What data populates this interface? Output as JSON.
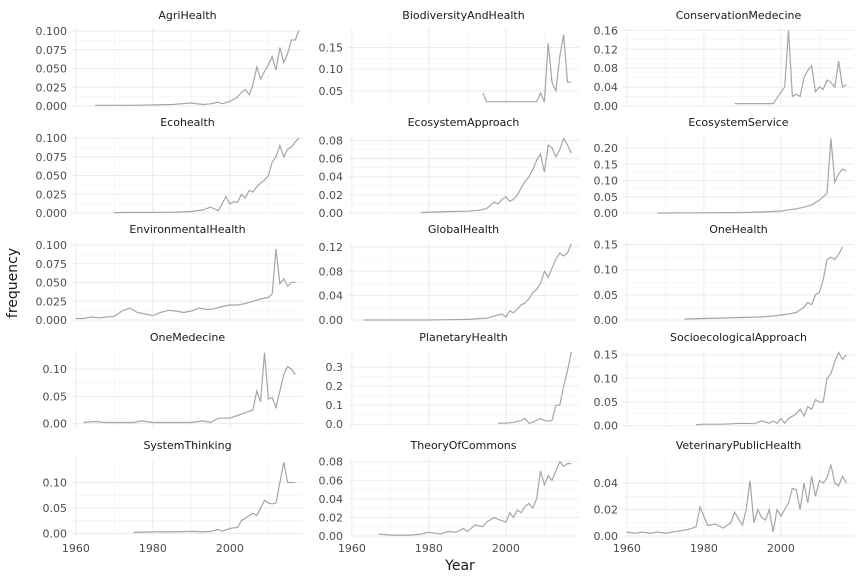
{
  "chart_data": {
    "type": "line",
    "layout": "facet-grid-3-columns-free-y",
    "xlabel": "Year",
    "ylabel": "frequency",
    "xticks": [
      1960,
      1980,
      2000
    ],
    "xlim": [
      1959,
      2019
    ],
    "grid": true,
    "line_color": "#a6a6a6",
    "panels": [
      {
        "name": "AgriHealth",
        "ylim": [
          0,
          0.104
        ],
        "yticks": [
          "0.000",
          "0.025",
          "0.050",
          "0.075",
          "0.100"
        ],
        "x": [
          1965,
          1975,
          1985,
          1990,
          1993,
          1995,
          1997,
          1998,
          2000,
          2002,
          2003,
          2004,
          2005,
          2006,
          2007,
          2008,
          2009,
          2010,
          2011,
          2012,
          2013,
          2014,
          2015,
          2016,
          2017,
          2018
        ],
        "y": [
          0.001,
          0.001,
          0.002,
          0.004,
          0.002,
          0.003,
          0.005,
          0.003,
          0.006,
          0.012,
          0.018,
          0.022,
          0.015,
          0.028,
          0.052,
          0.036,
          0.046,
          0.055,
          0.066,
          0.048,
          0.078,
          0.058,
          0.07,
          0.088,
          0.088,
          0.101
        ]
      },
      {
        "name": "BiodiversityAndHealth",
        "ylim": [
          0.015,
          0.195
        ],
        "yticks": [
          "0.05",
          "0.10",
          "0.15"
        ],
        "x": [
          1994,
          1995,
          1998,
          2000,
          2002,
          2004,
          2006,
          2008,
          2009,
          2010,
          2011,
          2012,
          2013,
          2014,
          2015,
          2016,
          2017
        ],
        "y": [
          0.045,
          0.025,
          0.025,
          0.025,
          0.025,
          0.025,
          0.025,
          0.025,
          0.045,
          0.025,
          0.16,
          0.07,
          0.05,
          0.13,
          0.18,
          0.07,
          0.07
        ]
      },
      {
        "name": "ConservationMedecine",
        "ylim": [
          0,
          0.165
        ],
        "yticks": [
          "0.00",
          "0.04",
          "0.08",
          "0.12",
          "0.16"
        ],
        "x": [
          1988,
          1992,
          1996,
          1998,
          2001,
          2002,
          2003,
          2004,
          2005,
          2006,
          2007,
          2008,
          2009,
          2010,
          2011,
          2012,
          2013,
          2014,
          2015,
          2016,
          2017
        ],
        "y": [
          0.005,
          0.005,
          0.005,
          0.005,
          0.04,
          0.16,
          0.02,
          0.025,
          0.02,
          0.06,
          0.075,
          0.085,
          0.03,
          0.04,
          0.035,
          0.055,
          0.05,
          0.04,
          0.095,
          0.04,
          0.045
        ]
      },
      {
        "name": "Ecohealth",
        "ylim": [
          0,
          0.104
        ],
        "yticks": [
          "0.000",
          "0.025",
          "0.050",
          "0.075",
          "0.100"
        ],
        "x": [
          1970,
          1975,
          1980,
          1985,
          1990,
          1993,
          1995,
          1997,
          1999,
          2000,
          2001,
          2002,
          2003,
          2004,
          2005,
          2006,
          2007,
          2008,
          2009,
          2010,
          2011,
          2012,
          2013,
          2014,
          2015,
          2016,
          2017,
          2018
        ],
        "y": [
          0.0005,
          0.0008,
          0.0008,
          0.001,
          0.002,
          0.004,
          0.008,
          0.003,
          0.022,
          0.012,
          0.015,
          0.014,
          0.025,
          0.02,
          0.03,
          0.028,
          0.035,
          0.04,
          0.044,
          0.05,
          0.068,
          0.075,
          0.09,
          0.075,
          0.085,
          0.088,
          0.095,
          0.1
        ]
      },
      {
        "name": "EcosystemApproach",
        "ylim": [
          0,
          0.086
        ],
        "yticks": [
          "0.00",
          "0.02",
          "0.04",
          "0.06",
          "0.08"
        ],
        "x": [
          1978,
          1981,
          1985,
          1990,
          1993,
          1995,
          1997,
          1998,
          1999,
          2000,
          2001,
          2002,
          2003,
          2004,
          2005,
          2006,
          2007,
          2008,
          2009,
          2010,
          2011,
          2012,
          2013,
          2014,
          2015,
          2016,
          2017
        ],
        "y": [
          0.0005,
          0.001,
          0.0015,
          0.002,
          0.003,
          0.005,
          0.012,
          0.01,
          0.015,
          0.018,
          0.013,
          0.015,
          0.02,
          0.028,
          0.035,
          0.04,
          0.048,
          0.058,
          0.065,
          0.045,
          0.075,
          0.072,
          0.062,
          0.07,
          0.082,
          0.075,
          0.066
        ]
      },
      {
        "name": "EcosystemService",
        "ylim": [
          0,
          0.24
        ],
        "yticks": [
          "0.00",
          "0.05",
          "0.10",
          "0.15",
          "0.20"
        ],
        "x": [
          1968,
          1980,
          1990,
          1995,
          2000,
          2002,
          2004,
          2006,
          2008,
          2010,
          2011,
          2012,
          2013,
          2014,
          2015,
          2016,
          2017
        ],
        "y": [
          0,
          0.0005,
          0.0015,
          0.003,
          0.006,
          0.01,
          0.013,
          0.018,
          0.025,
          0.04,
          0.05,
          0.06,
          0.23,
          0.095,
          0.12,
          0.135,
          0.13
        ]
      },
      {
        "name": "EnvironmentalHealth",
        "ylim": [
          0,
          0.104
        ],
        "yticks": [
          "0.000",
          "0.025",
          "0.050",
          "0.075",
          "0.100"
        ],
        "x": [
          1960,
          1962,
          1964,
          1966,
          1968,
          1970,
          1972,
          1974,
          1976,
          1978,
          1980,
          1982,
          1984,
          1986,
          1988,
          1990,
          1992,
          1994,
          1996,
          1998,
          2000,
          2002,
          2004,
          2006,
          2008,
          2010,
          2011,
          2012,
          2013,
          2014,
          2015,
          2016,
          2017
        ],
        "y": [
          0.002,
          0.002,
          0.004,
          0.003,
          0.004,
          0.005,
          0.012,
          0.016,
          0.01,
          0.008,
          0.006,
          0.01,
          0.013,
          0.012,
          0.01,
          0.012,
          0.016,
          0.014,
          0.015,
          0.018,
          0.02,
          0.02,
          0.022,
          0.025,
          0.028,
          0.03,
          0.035,
          0.095,
          0.048,
          0.055,
          0.045,
          0.05,
          0.05
        ]
      },
      {
        "name": "GlobalHealth",
        "ylim": [
          0,
          0.128
        ],
        "yticks": [
          "0.00",
          "0.04",
          "0.08",
          "0.12"
        ],
        "x": [
          1963,
          1970,
          1980,
          1985,
          1990,
          1995,
          1999,
          2000,
          2001,
          2002,
          2003,
          2004,
          2005,
          2006,
          2007,
          2008,
          2009,
          2010,
          2011,
          2012,
          2013,
          2014,
          2015,
          2016,
          2017
        ],
        "y": [
          0,
          0,
          0,
          0.0005,
          0.001,
          0.003,
          0.01,
          0.005,
          0.015,
          0.012,
          0.018,
          0.025,
          0.028,
          0.035,
          0.045,
          0.05,
          0.06,
          0.08,
          0.07,
          0.085,
          0.1,
          0.11,
          0.105,
          0.11,
          0.125
        ]
      },
      {
        "name": "OneHealth",
        "ylim": [
          0,
          0.155
        ],
        "yticks": [
          "0.00",
          "0.05",
          "0.10",
          "0.15"
        ],
        "x": [
          1975,
          1980,
          1985,
          1990,
          1995,
          1998,
          2000,
          2002,
          2004,
          2005,
          2006,
          2007,
          2008,
          2009,
          2010,
          2011,
          2012,
          2013,
          2014,
          2015,
          2016
        ],
        "y": [
          0.002,
          0.003,
          0.004,
          0.005,
          0.006,
          0.008,
          0.01,
          0.012,
          0.015,
          0.02,
          0.025,
          0.035,
          0.03,
          0.05,
          0.055,
          0.08,
          0.12,
          0.125,
          0.12,
          0.13,
          0.145
        ]
      },
      {
        "name": "OneMedecine",
        "ylim": [
          -0.008,
          0.135
        ],
        "yticks": [
          "0.00",
          "0.05",
          "0.10"
        ],
        "x": [
          1962,
          1965,
          1968,
          1970,
          1975,
          1977,
          1980,
          1985,
          1990,
          1993,
          1995,
          1997,
          2000,
          2002,
          2004,
          2006,
          2007,
          2008,
          2009,
          2010,
          2011,
          2012,
          2013,
          2014,
          2015,
          2016,
          2017
        ],
        "y": [
          0.002,
          0.004,
          0.002,
          0.002,
          0.002,
          0.005,
          0.002,
          0.002,
          0.002,
          0.005,
          0.002,
          0.01,
          0.01,
          0.015,
          0.02,
          0.025,
          0.06,
          0.04,
          0.13,
          0.045,
          0.048,
          0.03,
          0.06,
          0.09,
          0.105,
          0.1,
          0.09
        ]
      },
      {
        "name": "PlanetaryHealth",
        "ylim": [
          -0.02,
          0.39
        ],
        "yticks": [
          "0.0",
          "0.1",
          "0.2",
          "0.3"
        ],
        "x": [
          1998,
          2000,
          2002,
          2004,
          2005,
          2006,
          2007,
          2008,
          2009,
          2010,
          2011,
          2012,
          2013,
          2014,
          2015,
          2016,
          2017
        ],
        "y": [
          0.005,
          0.005,
          0.01,
          0.02,
          0.03,
          0.005,
          0.01,
          0.02,
          0.03,
          0.02,
          0.015,
          0.02,
          0.1,
          0.1,
          0.2,
          0.28,
          0.38
        ]
      },
      {
        "name": "SocioecologicalApproach",
        "ylim": [
          -0.005,
          0.16
        ],
        "yticks": [
          "0.00",
          "0.05",
          "0.10",
          "0.15"
        ],
        "x": [
          1978,
          1980,
          1985,
          1990,
          1993,
          1995,
          1997,
          1998,
          1999,
          2000,
          2001,
          2002,
          2003,
          2004,
          2005,
          2006,
          2007,
          2008,
          2009,
          2010,
          2011,
          2012,
          2013,
          2014,
          2015,
          2016,
          2017
        ],
        "y": [
          0.002,
          0.003,
          0.003,
          0.005,
          0.004,
          0.01,
          0.005,
          0.01,
          0.005,
          0.015,
          0.005,
          0.015,
          0.02,
          0.025,
          0.035,
          0.02,
          0.04,
          0.035,
          0.055,
          0.05,
          0.05,
          0.1,
          0.11,
          0.135,
          0.155,
          0.14,
          0.15
        ]
      },
      {
        "name": "SystemThinking",
        "ylim": [
          -0.005,
          0.148
        ],
        "yticks": [
          "0.00",
          "0.05",
          "0.10"
        ],
        "x": [
          1975,
          1980,
          1985,
          1990,
          1993,
          1995,
          1997,
          1998,
          2000,
          2002,
          2003,
          2004,
          2005,
          2006,
          2007,
          2008,
          2009,
          2010,
          2011,
          2012,
          2013,
          2014,
          2015,
          2016,
          2017
        ],
        "y": [
          0.002,
          0.003,
          0.003,
          0.004,
          0.003,
          0.004,
          0.008,
          0.004,
          0.01,
          0.012,
          0.025,
          0.03,
          0.035,
          0.04,
          0.035,
          0.05,
          0.065,
          0.06,
          0.058,
          0.06,
          0.1,
          0.14,
          0.1,
          0.1,
          0.1
        ]
      },
      {
        "name": "TheoryOfCommons",
        "ylim": [
          0,
          0.084
        ],
        "yticks": [
          "0.00",
          "0.02",
          "0.04",
          "0.06",
          "0.08"
        ],
        "x": [
          1967,
          1970,
          1975,
          1978,
          1980,
          1983,
          1985,
          1987,
          1989,
          1990,
          1992,
          1994,
          1995,
          1997,
          1998,
          2000,
          2001,
          2002,
          2003,
          2004,
          2005,
          2006,
          2007,
          2008,
          2009,
          2010,
          2011,
          2012,
          2013,
          2014,
          2015,
          2016,
          2017
        ],
        "y": [
          0.002,
          0.001,
          0.001,
          0.002,
          0.004,
          0.002,
          0.005,
          0.004,
          0.008,
          0.005,
          0.012,
          0.01,
          0.015,
          0.02,
          0.018,
          0.015,
          0.025,
          0.02,
          0.028,
          0.025,
          0.032,
          0.035,
          0.03,
          0.04,
          0.07,
          0.055,
          0.065,
          0.06,
          0.07,
          0.08,
          0.075,
          0.078,
          0.078
        ]
      },
      {
        "name": "VeterinaryPublicHealth",
        "ylim": [
          0,
          0.059
        ],
        "yticks": [
          "0.00",
          "0.02",
          "0.04"
        ],
        "x": [
          1960,
          1962,
          1964,
          1966,
          1968,
          1970,
          1972,
          1974,
          1976,
          1978,
          1979,
          1981,
          1983,
          1985,
          1987,
          1988,
          1990,
          1991,
          1992,
          1993,
          1994,
          1995,
          1996,
          1997,
          1998,
          1999,
          2000,
          2001,
          2002,
          2003,
          2004,
          2005,
          2006,
          2007,
          2008,
          2009,
          2010,
          2011,
          2012,
          2013,
          2014,
          2015,
          2016,
          2017
        ],
        "y": [
          0.003,
          0.002,
          0.003,
          0.002,
          0.003,
          0.002,
          0.003,
          0.004,
          0.005,
          0.007,
          0.022,
          0.008,
          0.009,
          0.006,
          0.01,
          0.018,
          0.008,
          0.02,
          0.042,
          0.01,
          0.02,
          0.014,
          0.012,
          0.02,
          0.003,
          0.02,
          0.015,
          0.02,
          0.025,
          0.036,
          0.035,
          0.02,
          0.04,
          0.025,
          0.045,
          0.03,
          0.042,
          0.04,
          0.044,
          0.054,
          0.04,
          0.038,
          0.045,
          0.04
        ]
      }
    ]
  }
}
